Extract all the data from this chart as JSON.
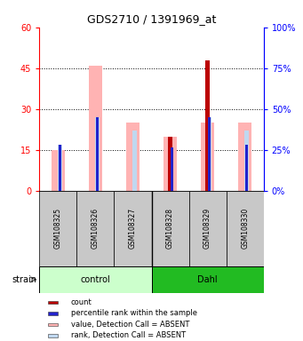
{
  "title": "GDS2710 / 1391969_at",
  "samples": [
    "GSM108325",
    "GSM108326",
    "GSM108327",
    "GSM108328",
    "GSM108329",
    "GSM108330"
  ],
  "ylim_left": [
    0,
    60
  ],
  "ylim_right": [
    0,
    100
  ],
  "yticks_left": [
    0,
    15,
    30,
    45,
    60
  ],
  "yticks_right": [
    0,
    25,
    50,
    75,
    100
  ],
  "pink_bars": [
    15.0,
    46.0,
    25.0,
    20.0,
    25.0,
    25.0
  ],
  "lightblue_bars": [
    17.0,
    27.0,
    22.0,
    0.0,
    27.0,
    22.0
  ],
  "red_bars": [
    0.0,
    0.0,
    0.0,
    20.0,
    48.0,
    0.0
  ],
  "blue_bars": [
    17.0,
    27.0,
    0.0,
    16.0,
    27.0,
    17.0
  ],
  "pink_color": "#FFB3B3",
  "lightblue_color": "#C0D8F0",
  "red_color": "#BB0000",
  "blue_color": "#2222CC",
  "control_color_light": "#CCFFCC",
  "control_color_dark": "#44CC44",
  "dahl_color_dark": "#22BB22",
  "sample_box_color": "#C8C8C8",
  "legend_items": [
    {
      "color": "#BB0000",
      "label": "count"
    },
    {
      "color": "#2222CC",
      "label": "percentile rank within the sample"
    },
    {
      "color": "#FFB3B3",
      "label": "value, Detection Call = ABSENT"
    },
    {
      "color": "#C0D8F0",
      "label": "rank, Detection Call = ABSENT"
    }
  ]
}
